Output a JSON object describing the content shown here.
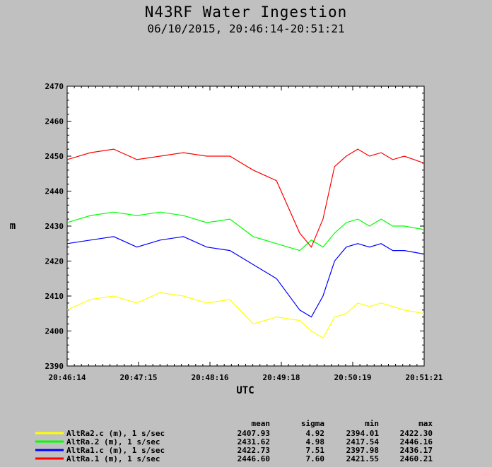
{
  "chart_data": {
    "type": "line",
    "title": "N43RF Water Ingestion",
    "subtitle": "06/10/2015, 20:46:14-20:51:21",
    "xlabel": "UTC",
    "ylabel": "m",
    "ylim": [
      2390,
      2470
    ],
    "yticks": [
      "2390",
      "2400",
      "2410",
      "2420",
      "2430",
      "2440",
      "2450",
      "2460",
      "2470"
    ],
    "xticks": [
      "20:46:14",
      "20:47:15",
      "20:48:16",
      "20:49:18",
      "20:50:19",
      "20:51:21"
    ],
    "x_range_seconds": [
      0,
      307
    ],
    "legend": {
      "headers": [
        "mean",
        "sigma",
        "min",
        "max"
      ],
      "entries": [
        {
          "label": "AltRa2.c (m), 1 s/sec",
          "mean": "2407.93",
          "sigma": "4.92",
          "min": "2394.01",
          "max": "2422.30"
        },
        {
          "label": "AltRa.2 (m), 1 s/sec",
          "mean": "2431.62",
          "sigma": "4.98",
          "min": "2417.54",
          "max": "2446.16"
        },
        {
          "label": "AltRa1.c (m), 1 s/sec",
          "mean": "2422.73",
          "sigma": "7.51",
          "min": "2397.98",
          "max": "2436.17"
        },
        {
          "label": "AltRa.1 (m), 1 s/sec",
          "mean": "2446.60",
          "sigma": "7.60",
          "min": "2421.55",
          "max": "2460.21"
        }
      ]
    },
    "series": [
      {
        "name": "AltRa2.c (m), 1 s/sec",
        "color": "#ffff00",
        "x": [
          0,
          20,
          40,
          60,
          80,
          100,
          120,
          140,
          160,
          180,
          200,
          210,
          220,
          230,
          240,
          250,
          260,
          270,
          280,
          290,
          307
        ],
        "values": [
          2406,
          2409,
          2410,
          2408,
          2411,
          2410,
          2408,
          2409,
          2402,
          2404,
          2403,
          2400,
          2398,
          2404,
          2405,
          2408,
          2407,
          2408,
          2407,
          2406,
          2405
        ]
      },
      {
        "name": "AltRa.2 (m), 1 s/sec",
        "color": "#00ff00",
        "x": [
          0,
          20,
          40,
          60,
          80,
          100,
          120,
          140,
          160,
          180,
          200,
          210,
          220,
          230,
          240,
          250,
          260,
          270,
          280,
          290,
          307
        ],
        "values": [
          2431,
          2433,
          2434,
          2433,
          2434,
          2433,
          2431,
          2432,
          2427,
          2425,
          2423,
          2426,
          2424,
          2428,
          2431,
          2432,
          2430,
          2432,
          2430,
          2430,
          2429
        ]
      },
      {
        "name": "AltRa1.c (m), 1 s/sec",
        "color": "#0000ff",
        "x": [
          0,
          20,
          40,
          60,
          80,
          100,
          120,
          140,
          160,
          180,
          200,
          210,
          220,
          230,
          240,
          250,
          260,
          270,
          280,
          290,
          307
        ],
        "values": [
          2425,
          2426,
          2427,
          2424,
          2426,
          2427,
          2424,
          2423,
          2419,
          2415,
          2406,
          2404,
          2410,
          2420,
          2424,
          2425,
          2424,
          2425,
          2423,
          2423,
          2422
        ]
      },
      {
        "name": "AltRa.1 (m), 1 s/sec",
        "color": "#ff0000",
        "x": [
          0,
          20,
          40,
          60,
          80,
          100,
          120,
          140,
          160,
          180,
          200,
          210,
          220,
          230,
          240,
          250,
          260,
          270,
          280,
          290,
          307
        ],
        "values": [
          2449,
          2451,
          2452,
          2449,
          2450,
          2451,
          2450,
          2450,
          2446,
          2443,
          2428,
          2424,
          2432,
          2447,
          2450,
          2452,
          2450,
          2451,
          2449,
          2450,
          2448
        ]
      }
    ]
  }
}
